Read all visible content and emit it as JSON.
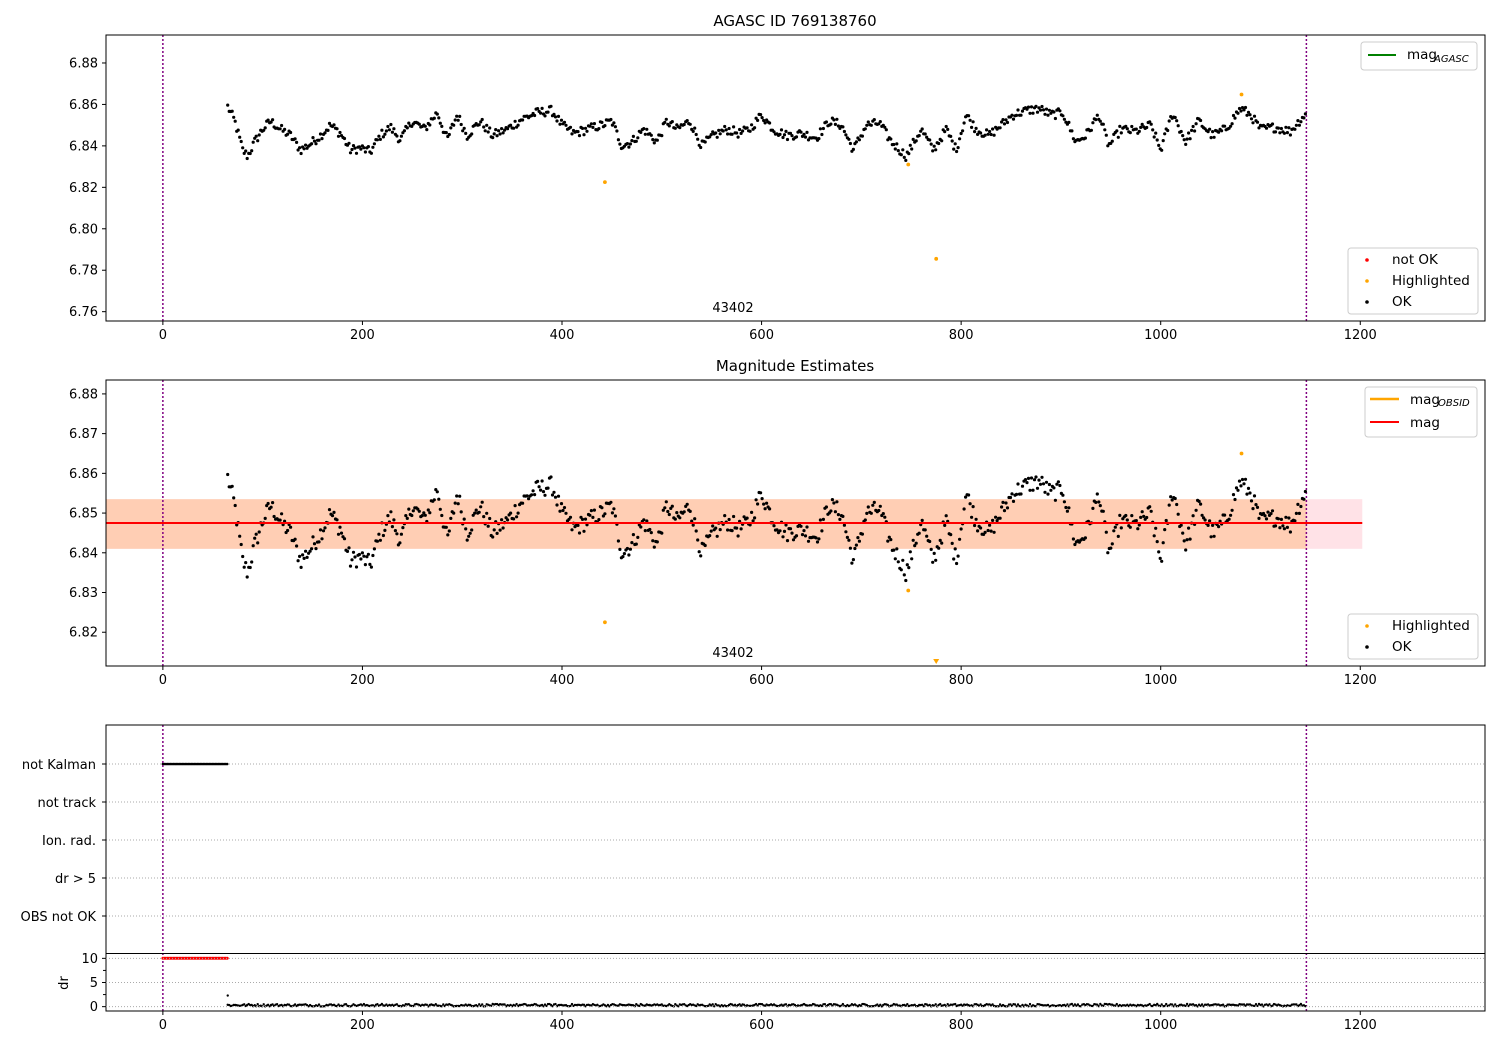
{
  "chart_data": [
    {
      "type": "scatter",
      "title": "AGASC ID 769138760",
      "annotation": "43402",
      "xlim": [
        -57,
        1325
      ],
      "ylim": [
        6.7555,
        6.8935
      ],
      "xticks": [
        0,
        200,
        400,
        600,
        800,
        1000,
        1200
      ],
      "yticks": [
        6.76,
        6.78,
        6.8,
        6.82,
        6.84,
        6.86,
        6.88
      ],
      "ytick_labels": [
        "6.76",
        "6.78",
        "6.80",
        "6.82",
        "6.84",
        "6.86",
        "6.88"
      ],
      "vlines_x": [
        0,
        1146
      ],
      "legend_upper": [
        {
          "label": "mag",
          "subscript": "AGASC",
          "color": "#008000",
          "kind": "line"
        }
      ],
      "legend_lower": [
        {
          "label": "not OK",
          "color": "#ff0000",
          "kind": "point"
        },
        {
          "label": "Highlighted",
          "color": "#ffa500",
          "kind": "point"
        },
        {
          "label": "OK",
          "color": "#000000",
          "kind": "point"
        }
      ],
      "ok_series": {
        "name": "OK",
        "x_start": 65,
        "x_end": 1146,
        "step": 1.5,
        "anchors": [
          [
            65,
            6.859
          ],
          [
            72,
            6.852
          ],
          [
            80,
            6.838
          ],
          [
            85,
            6.835
          ],
          [
            92,
            6.842
          ],
          [
            100,
            6.848
          ],
          [
            108,
            6.852
          ],
          [
            118,
            6.848
          ],
          [
            128,
            6.845
          ],
          [
            138,
            6.838
          ],
          [
            148,
            6.841
          ],
          [
            158,
            6.845
          ],
          [
            168,
            6.85
          ],
          [
            178,
            6.846
          ],
          [
            188,
            6.838
          ],
          [
            198,
            6.839
          ],
          [
            208,
            6.837
          ],
          [
            218,
            6.845
          ],
          [
            228,
            6.849
          ],
          [
            238,
            6.843
          ],
          [
            250,
            6.852
          ],
          [
            262,
            6.848
          ],
          [
            275,
            6.856
          ],
          [
            285,
            6.843
          ],
          [
            295,
            6.855
          ],
          [
            305,
            6.845
          ],
          [
            318,
            6.852
          ],
          [
            330,
            6.845
          ],
          [
            345,
            6.848
          ],
          [
            360,
            6.853
          ],
          [
            375,
            6.856
          ],
          [
            390,
            6.857
          ],
          [
            400,
            6.85
          ],
          [
            412,
            6.846
          ],
          [
            425,
            6.848
          ],
          [
            440,
            6.85
          ],
          [
            450,
            6.852
          ],
          [
            460,
            6.84
          ],
          [
            470,
            6.842
          ],
          [
            482,
            6.848
          ],
          [
            495,
            6.842
          ],
          [
            505,
            6.852
          ],
          [
            515,
            6.848
          ],
          [
            528,
            6.852
          ],
          [
            540,
            6.84
          ],
          [
            552,
            6.845
          ],
          [
            565,
            6.848
          ],
          [
            578,
            6.846
          ],
          [
            588,
            6.848
          ],
          [
            600,
            6.855
          ],
          [
            612,
            6.848
          ],
          [
            625,
            6.845
          ],
          [
            640,
            6.846
          ],
          [
            655,
            6.844
          ],
          [
            668,
            6.852
          ],
          [
            680,
            6.85
          ],
          [
            692,
            6.838
          ],
          [
            705,
            6.85
          ],
          [
            718,
            6.851
          ],
          [
            730,
            6.842
          ],
          [
            745,
            6.835
          ],
          [
            760,
            6.848
          ],
          [
            772,
            6.838
          ],
          [
            785,
            6.848
          ],
          [
            795,
            6.838
          ],
          [
            805,
            6.855
          ],
          [
            815,
            6.848
          ],
          [
            828,
            6.845
          ],
          [
            840,
            6.85
          ],
          [
            852,
            6.855
          ],
          [
            865,
            6.857
          ],
          [
            878,
            6.858
          ],
          [
            890,
            6.855
          ],
          [
            902,
            6.856
          ],
          [
            915,
            6.842
          ],
          [
            925,
            6.845
          ],
          [
            938,
            6.855
          ],
          [
            948,
            6.84
          ],
          [
            960,
            6.848
          ],
          [
            975,
            6.847
          ],
          [
            990,
            6.85
          ],
          [
            1000,
            6.838
          ],
          [
            1012,
            6.856
          ],
          [
            1025,
            6.842
          ],
          [
            1038,
            6.852
          ],
          [
            1052,
            6.845
          ],
          [
            1065,
            6.848
          ],
          [
            1080,
            6.858
          ],
          [
            1090,
            6.855
          ],
          [
            1100,
            6.848
          ],
          [
            1115,
            6.849
          ],
          [
            1130,
            6.847
          ],
          [
            1146,
            6.856
          ]
        ],
        "color": "#000000"
      },
      "highlighted_points": [
        [
          443,
          6.8225
        ],
        [
          747,
          6.831
        ],
        [
          775,
          6.7855
        ],
        [
          1081,
          6.8648
        ]
      ]
    },
    {
      "type": "scatter",
      "title": "Magnitude Estimates",
      "annotation": "43402",
      "xlim": [
        -57,
        1325
      ],
      "ylim": [
        6.8115,
        6.8835
      ],
      "xticks": [
        0,
        200,
        400,
        600,
        800,
        1000,
        1200
      ],
      "yticks": [
        6.82,
        6.83,
        6.84,
        6.85,
        6.86,
        6.87,
        6.88
      ],
      "ytick_labels": [
        "6.82",
        "6.83",
        "6.84",
        "6.85",
        "6.86",
        "6.87",
        "6.88"
      ],
      "vlines_x": [
        0,
        1146
      ],
      "mean_mag": 6.8475,
      "band_mag_obsid": [
        6.841,
        6.8535
      ],
      "band_mag": [
        6.841,
        6.8535
      ],
      "band_x": [
        -57,
        1202
      ],
      "legend_upper": [
        {
          "label": "mag",
          "subscript": "OBSID",
          "color": "#ffa500",
          "kind": "line"
        },
        {
          "label": "mag",
          "subscript": "",
          "color": "#ff0000",
          "kind": "line"
        }
      ],
      "legend_lower": [
        {
          "label": "Highlighted",
          "color": "#ffa500",
          "kind": "point"
        },
        {
          "label": "OK",
          "color": "#000000",
          "kind": "point"
        }
      ],
      "highlighted_points": [
        [
          443,
          6.8225
        ],
        [
          747,
          6.8305
        ],
        [
          1081,
          6.865
        ]
      ],
      "clipped_marker_x": 775
    },
    {
      "type": "scatter",
      "title": "",
      "xlim": [
        -57,
        1325
      ],
      "xticks": [
        0,
        200,
        400,
        600,
        800,
        1000,
        1200
      ],
      "flag_labels": [
        "not Kalman",
        "not track",
        "Ion. rad.",
        "dr > 5",
        "OBS not OK"
      ],
      "flag_segments": [
        {
          "flag": "not Kalman",
          "x_range": [
            0,
            65
          ]
        }
      ],
      "dr_axis_label": "dr",
      "dr_ylim": [
        -0.9,
        10.9
      ],
      "dr_yticks": [
        0,
        5,
        10
      ],
      "dr_ytick_labels": [
        "0",
        "5",
        "10"
      ],
      "dr_capped_range": [
        0,
        65
      ],
      "dr_capped_value": 10,
      "dr_spike": [
        [
          65,
          2.3
        ]
      ],
      "dr_baseline": 0.3,
      "vlines_x": [
        0,
        1146
      ]
    }
  ]
}
